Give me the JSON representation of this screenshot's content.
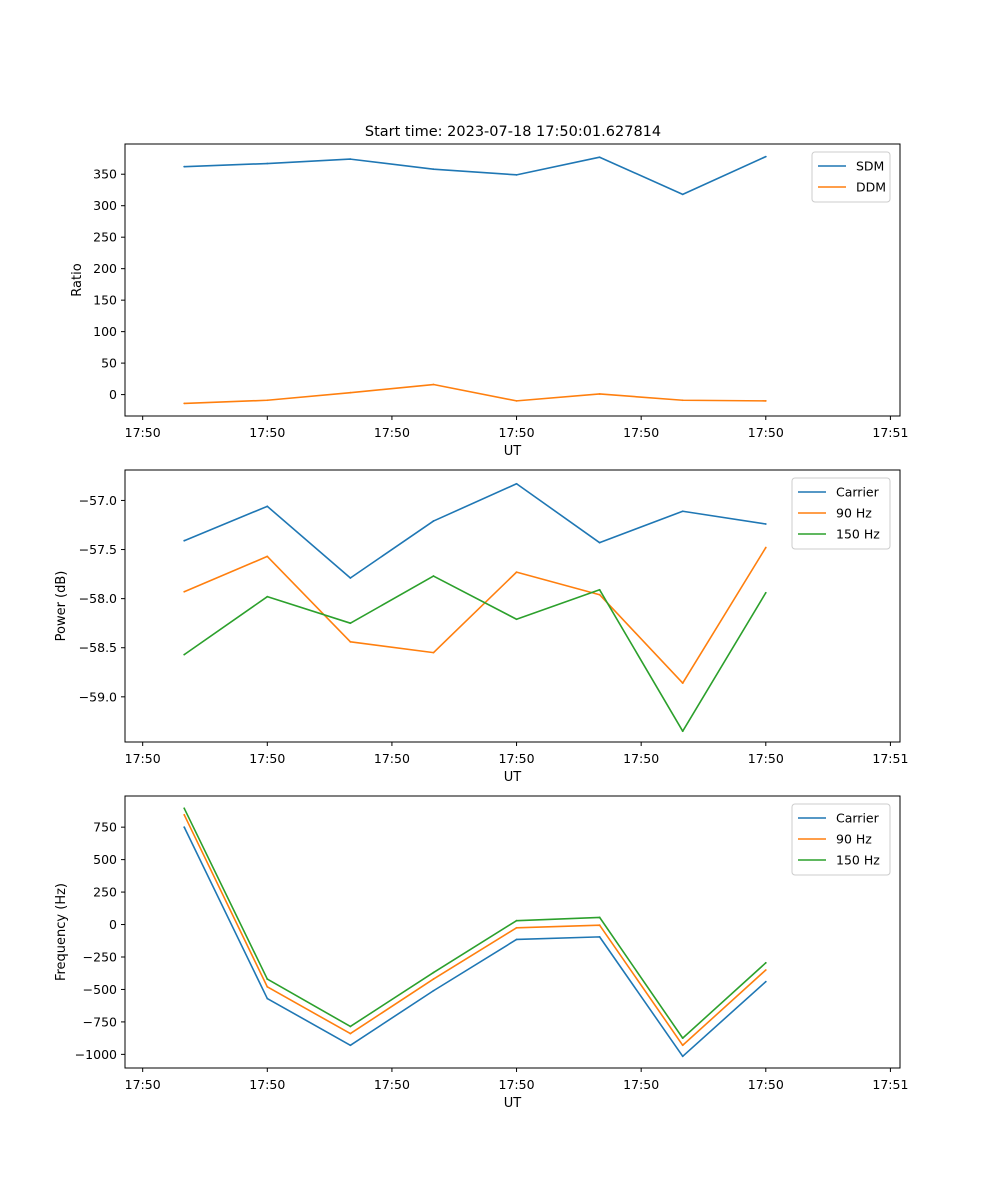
{
  "figure": {
    "title": "Start time: 2023-07-18 17:50:01.627814"
  },
  "chart_data": [
    {
      "type": "line",
      "title": "Start time: 2023-07-18 17:50:01.627814",
      "xlabel": "UT",
      "ylabel": "Ratio",
      "x": [
        0,
        1,
        2,
        3,
        4,
        5,
        6,
        7
      ],
      "xlim": [
        -0.7128,
        8.6154
      ],
      "xticks": [
        {
          "value": -0.5,
          "label": "17:50"
        },
        {
          "value": 1.0,
          "label": "17:50"
        },
        {
          "value": 2.5,
          "label": "17:50"
        },
        {
          "value": 4.0,
          "label": "17:50"
        },
        {
          "value": 5.5,
          "label": "17:50"
        },
        {
          "value": 7.0,
          "label": "17:50"
        },
        {
          "value": 8.5,
          "label": "17:51"
        }
      ],
      "ylim": [
        -34,
        398
      ],
      "yticks": [
        {
          "value": 0,
          "label": "0"
        },
        {
          "value": 50,
          "label": "50"
        },
        {
          "value": 100,
          "label": "100"
        },
        {
          "value": 150,
          "label": "150"
        },
        {
          "value": 200,
          "label": "200"
        },
        {
          "value": 250,
          "label": "250"
        },
        {
          "value": 300,
          "label": "300"
        },
        {
          "value": 350,
          "label": "350"
        }
      ],
      "legend": "top-right",
      "grid": false,
      "series": [
        {
          "name": "SDM",
          "color": "#1f77b4",
          "values": [
            362,
            367,
            374,
            358,
            349,
            377,
            318,
            378
          ]
        },
        {
          "name": "DDM",
          "color": "#ff7f0e",
          "values": [
            -14,
            -9,
            3,
            16,
            -10,
            1,
            -9,
            -10
          ]
        }
      ]
    },
    {
      "type": "line",
      "xlabel": "UT",
      "ylabel": "Power (dB)",
      "x": [
        0,
        1,
        2,
        3,
        4,
        5,
        6,
        7
      ],
      "xlim": [
        -0.7128,
        8.6154
      ],
      "xticks": [
        {
          "value": -0.5,
          "label": "17:50"
        },
        {
          "value": 1.0,
          "label": "17:50"
        },
        {
          "value": 2.5,
          "label": "17:50"
        },
        {
          "value": 4.0,
          "label": "17:50"
        },
        {
          "value": 5.5,
          "label": "17:50"
        },
        {
          "value": 7.0,
          "label": "17:50"
        },
        {
          "value": 8.5,
          "label": "17:51"
        }
      ],
      "ylim": [
        -59.46,
        -56.69
      ],
      "yticks": [
        {
          "value": -59.0,
          "label": "−59.0"
        },
        {
          "value": -58.5,
          "label": "−58.5"
        },
        {
          "value": -58.0,
          "label": "−58.0"
        },
        {
          "value": -57.5,
          "label": "−57.5"
        },
        {
          "value": -57.0,
          "label": "−57.0"
        }
      ],
      "legend": "top-right",
      "grid": false,
      "series": [
        {
          "name": "Carrier",
          "color": "#1f77b4",
          "values": [
            -57.41,
            -57.06,
            -57.79,
            -57.21,
            -56.83,
            -57.43,
            -57.11,
            -57.24
          ]
        },
        {
          "name": "90 Hz",
          "color": "#ff7f0e",
          "values": [
            -57.93,
            -57.57,
            -58.44,
            -58.55,
            -57.73,
            -57.96,
            -58.86,
            -57.48
          ]
        },
        {
          "name": "150 Hz",
          "color": "#2ca02c",
          "values": [
            -58.57,
            -57.98,
            -58.25,
            -57.77,
            -58.21,
            -57.91,
            -59.35,
            -57.94
          ]
        }
      ]
    },
    {
      "type": "line",
      "xlabel": "UT",
      "ylabel": "Frequency (Hz)",
      "x": [
        0,
        1,
        2,
        3,
        4,
        5,
        6,
        7
      ],
      "xlim": [
        -0.7128,
        8.6154
      ],
      "xticks": [
        {
          "value": -0.5,
          "label": "17:50"
        },
        {
          "value": 1.0,
          "label": "17:50"
        },
        {
          "value": 2.5,
          "label": "17:50"
        },
        {
          "value": 4.0,
          "label": "17:50"
        },
        {
          "value": 5.5,
          "label": "17:50"
        },
        {
          "value": 7.0,
          "label": "17:50"
        },
        {
          "value": 8.5,
          "label": "17:51"
        }
      ],
      "ylim": [
        -1105,
        990
      ],
      "yticks": [
        {
          "value": -1000,
          "label": "−1000"
        },
        {
          "value": -750,
          "label": "−750"
        },
        {
          "value": -500,
          "label": "−500"
        },
        {
          "value": -250,
          "label": "−250"
        },
        {
          "value": 0,
          "label": "0"
        },
        {
          "value": 250,
          "label": "250"
        },
        {
          "value": 500,
          "label": "500"
        },
        {
          "value": 750,
          "label": "750"
        }
      ],
      "legend": "top-right",
      "grid": false,
      "series": [
        {
          "name": "Carrier",
          "color": "#1f77b4",
          "values": [
            750,
            -570,
            -930,
            -510,
            -115,
            -95,
            -1015,
            -440
          ]
        },
        {
          "name": "90 Hz",
          "color": "#ff7f0e",
          "values": [
            845,
            -480,
            -840,
            -420,
            -25,
            -5,
            -930,
            -350
          ]
        },
        {
          "name": "150 Hz",
          "color": "#2ca02c",
          "values": [
            895,
            -420,
            -785,
            -370,
            30,
            55,
            -875,
            -295
          ]
        }
      ]
    }
  ]
}
